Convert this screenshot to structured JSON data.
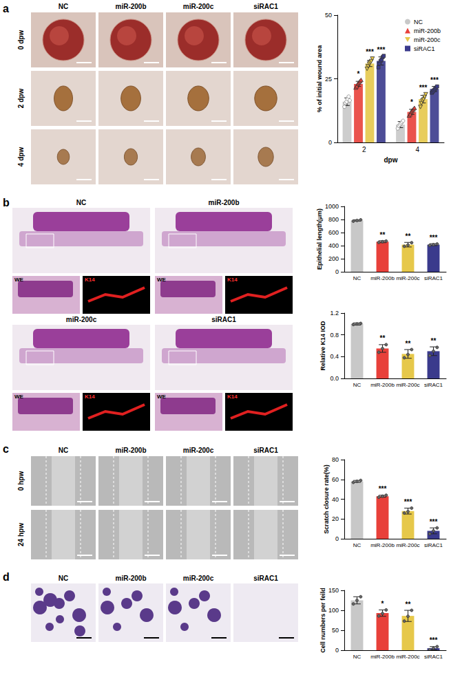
{
  "figure": {
    "panels": [
      {
        "letter": "a",
        "columns": [
          "NC",
          "miR-200b",
          "miR-200c",
          "siRAC1"
        ],
        "rows": [
          "0 dpw",
          "2 dpw",
          "4 dpw"
        ]
      },
      {
        "letter": "b",
        "blocks": [
          "NC",
          "miR-200b",
          "miR-200c",
          "siRAC1"
        ],
        "insets": [
          "WE",
          "K14"
        ]
      },
      {
        "letter": "c",
        "columns": [
          "NC",
          "miR-200b",
          "miR-200c",
          "siRAC1"
        ],
        "rows": [
          "0 hpw",
          "24 hpw"
        ]
      },
      {
        "letter": "d",
        "columns": [
          "NC",
          "miR-200b",
          "miR-200c",
          "siRAC1"
        ]
      }
    ]
  },
  "chart_data": [
    {
      "type": "bar",
      "ylabel": "% of initial wound area",
      "xlabel": "dpw",
      "categories": [
        "2",
        "4"
      ],
      "ylim": [
        0,
        50
      ],
      "yticks": [
        0,
        25,
        50
      ],
      "grid": false,
      "legend": "top-right",
      "series": [
        {
          "name": "NC",
          "color": "#c8c8c8",
          "marker": "circle",
          "values": [
            16,
            7
          ],
          "errors": [
            1.5,
            1.2
          ],
          "points": [
            [
              14,
              15.5,
              16,
              17,
              18,
              16.5
            ],
            [
              5.5,
              6.5,
              7,
              7.5,
              8,
              8.5
            ]
          ],
          "significance": [
            null,
            null
          ]
        },
        {
          "name": "miR-200b",
          "color": "#e8403a",
          "marker": "triangle",
          "values": [
            23,
            12
          ],
          "errors": [
            1,
            1
          ],
          "points": [
            [
              21.5,
              22,
              23,
              23.5,
              24,
              24.5
            ],
            [
              10.5,
              11,
              12,
              12.5,
              13,
              13.5
            ]
          ],
          "significance": [
            "*",
            "*"
          ]
        },
        {
          "name": "miR-200c",
          "color": "#e6c84a",
          "marker": "triangle-down",
          "values": [
            31,
            17
          ],
          "errors": [
            1.2,
            1.5
          ],
          "points": [
            [
              29,
              30,
              31,
              31.5,
              32,
              33
            ],
            [
              14,
              15.5,
              16.5,
              17,
              18,
              19
            ]
          ],
          "significance": [
            "***",
            "***"
          ]
        },
        {
          "name": "siRAC1",
          "color": "#3a3a8c",
          "marker": "square",
          "values": [
            32,
            21
          ],
          "errors": [
            1.6,
            1
          ],
          "points": [
            [
              29.5,
              31,
              32,
              32.5,
              33.5,
              34
            ],
            [
              19.5,
              20,
              20.5,
              21,
              21.5,
              22
            ]
          ],
          "significance": [
            "***",
            "***"
          ]
        }
      ]
    },
    {
      "type": "bar",
      "ylabel": "Epithelial length(μm)",
      "categories": [
        "NC",
        "miR-200b",
        "miR-200c",
        "siRAC1"
      ],
      "ylim": [
        0,
        1000
      ],
      "yticks": [
        0,
        200,
        400,
        600,
        800,
        1000
      ],
      "grid": false,
      "series": [
        {
          "colors": [
            "#c8c8c8",
            "#e8403a",
            "#e6c84a",
            "#3a3a8c"
          ],
          "marker": "circle",
          "values": [
            785,
            460,
            415,
            415
          ],
          "errors": [
            10,
            15,
            35,
            15
          ],
          "points": [
            [
              775,
              785,
              795
            ],
            [
              450,
              460,
              470
            ],
            [
              390,
              410,
              445
            ],
            [
              405,
              415,
              425
            ]
          ],
          "significance": [
            null,
            "**",
            "**",
            "***"
          ]
        }
      ]
    },
    {
      "type": "bar",
      "ylabel": "Relative K14 IOD",
      "categories": [
        "NC",
        "miR-200b",
        "miR-200c",
        "siRAC1"
      ],
      "ylim": [
        0,
        1.2
      ],
      "yticks": [
        {
          "value": 0,
          "label": "0.0"
        },
        0.4,
        0.8,
        1.2
      ],
      "grid": false,
      "series": [
        {
          "colors": [
            "#c8c8c8",
            "#e8403a",
            "#e6c84a",
            "#3a3a8c"
          ],
          "marker": "circle",
          "values": [
            1,
            0.55,
            0.45,
            0.5
          ],
          "errors": [
            0.02,
            0.07,
            0.08,
            0.08
          ],
          "points": [
            [
              0.99,
              1,
              1.01
            ],
            [
              0.48,
              0.55,
              0.62
            ],
            [
              0.38,
              0.44,
              0.53
            ],
            [
              0.42,
              0.5,
              0.57
            ]
          ],
          "significance": [
            null,
            "**",
            "**",
            "**"
          ]
        }
      ]
    },
    {
      "type": "bar",
      "ylabel": "Scratch closure rate(%)",
      "categories": [
        "NC",
        "miR-200b",
        "miR-200c",
        "siRAC1"
      ],
      "ylim": [
        0,
        80
      ],
      "yticks": [
        0,
        20,
        40,
        60,
        80
      ],
      "grid": false,
      "series": [
        {
          "colors": [
            "#c8c8c8",
            "#e8403a",
            "#e6c84a",
            "#3a3a8c"
          ],
          "marker": "circle",
          "values": [
            58,
            43,
            28,
            8
          ],
          "errors": [
            1,
            1,
            3,
            3
          ],
          "points": [
            [
              57,
              58,
              59
            ],
            [
              42,
              43,
              44
            ],
            [
              26,
              27.5,
              31
            ],
            [
              5,
              8,
              11
            ]
          ],
          "significance": [
            null,
            "***",
            "***",
            "***"
          ]
        }
      ]
    },
    {
      "type": "bar",
      "ylabel": "Cell numbers per feild",
      "categories": [
        "NC",
        "miR-200b",
        "miR-200c",
        "siRAC1"
      ],
      "ylim": [
        0,
        150
      ],
      "yticks": [
        0,
        50,
        100,
        150
      ],
      "grid": false,
      "series": [
        {
          "colors": [
            "#c8c8c8",
            "#e8403a",
            "#e6c84a",
            "#3a3a8c"
          ],
          "marker": "circle",
          "values": [
            125,
            93,
            86,
            5
          ],
          "errors": [
            9,
            8,
            14,
            4
          ],
          "points": [
            [
              116,
              125,
              134
            ],
            [
              86,
              92,
              101
            ],
            [
              73,
              85,
              100
            ],
            [
              1,
              5,
              9
            ]
          ],
          "significance": [
            null,
            "*",
            "**",
            "***"
          ]
        }
      ]
    }
  ]
}
